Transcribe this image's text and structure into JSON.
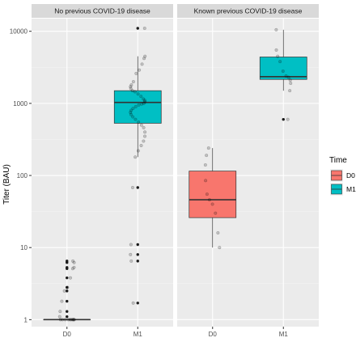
{
  "chart_data": {
    "type": "box",
    "ylabel": "Titer (BAU)",
    "xlabel": "",
    "y_scale": "log10",
    "ylim": [
      0.8,
      15000
    ],
    "y_ticks": [
      1,
      10,
      100,
      1000,
      10000
    ],
    "y_tick_labels": [
      "1",
      "10",
      "100",
      "1000",
      "10000"
    ],
    "categories": [
      "D0",
      "M1"
    ],
    "legend": {
      "title": "Time",
      "position": "right",
      "entries": [
        {
          "label": "D0",
          "color": "#F8766D"
        },
        {
          "label": "M1",
          "color": "#00BFC4"
        }
      ]
    },
    "panels": [
      {
        "label": "No previous COVID-19 disease",
        "boxes": [
          {
            "category": "D0",
            "color": "#F8766D",
            "min": 1,
            "q1": 1,
            "median": 1,
            "q3": 1,
            "max": 1,
            "outliers": [
              6.5,
              6.2,
              5.3,
              5.1,
              3.8,
              2.8,
              2.5,
              1.8,
              1.3,
              1.1
            ],
            "points": [
              1,
              1,
              1,
              1,
              1,
              1,
              1,
              1,
              1,
              1,
              1.1,
              1.3,
              1.8,
              2.5,
              2.8,
              3.8,
              5.1,
              5.3,
              6.2,
              6.5
            ]
          },
          {
            "category": "M1",
            "color": "#00BFC4",
            "min": 180,
            "q1": 530,
            "median": 1030,
            "q3": 1500,
            "max": 4500,
            "outliers": [
              11000,
              68,
              11,
              8,
              6.5,
              1.7
            ],
            "points": [
              11000,
              4500,
              4200,
              3500,
              2900,
              2600,
              2000,
              1800,
              1700,
              1600,
              1500,
              1450,
              1350,
              1250,
              1150,
              1100,
              1050,
              1000,
              980,
              950,
              900,
              850,
              800,
              750,
              700,
              650,
              600,
              550,
              500,
              460,
              400,
              350,
              300,
              260,
              220,
              180,
              68,
              11,
              8,
              6.5,
              1.7
            ]
          }
        ]
      },
      {
        "label": "Known previous COVID-19 disease",
        "boxes": [
          {
            "category": "D0",
            "color": "#F8766D",
            "min": 10,
            "q1": 26,
            "median": 46,
            "q3": 115,
            "max": 240,
            "outliers": [],
            "points": [
              240,
              190,
              140,
              85,
              55,
              46,
              40,
              30,
              16,
              10
            ]
          },
          {
            "category": "M1",
            "color": "#00BFC4",
            "min": 1500,
            "q1": 2150,
            "median": 2350,
            "q3": 4400,
            "max": 10500,
            "outliers": [
              600
            ],
            "points": [
              10500,
              5500,
              4500,
              3800,
              2800,
              2400,
              2300,
              2100,
              1900,
              1500,
              600
            ]
          }
        ]
      }
    ]
  },
  "colors": {
    "panel_bg": "#EBEBEB",
    "grid_major": "#FFFFFF",
    "strip_bg": "#D9D9D9",
    "box_outline": "#333333"
  }
}
